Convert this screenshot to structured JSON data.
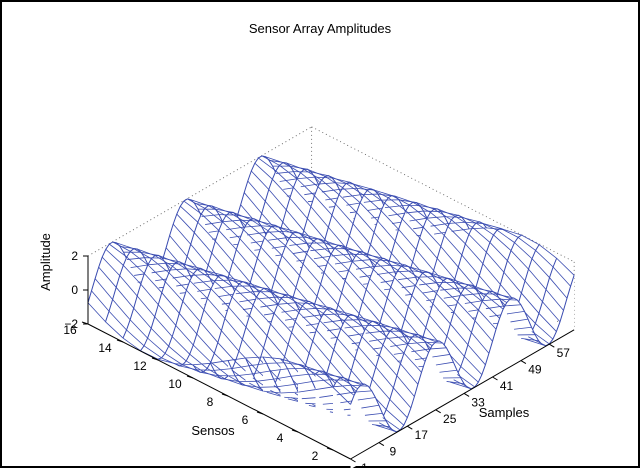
{
  "chart_data": {
    "type": "mesh",
    "title": "Sensor Array Amplitudes",
    "xlabel": "Samples",
    "ylabel": "Sensos",
    "zlabel": "Amplitude",
    "x_ticks": [
      "1",
      "9",
      "17",
      "25",
      "33",
      "41",
      "49",
      "57"
    ],
    "y_ticks": [
      "2",
      "4",
      "6",
      "8",
      "10",
      "12",
      "14",
      "16"
    ],
    "z_ticks": [
      "2",
      "0",
      "−2"
    ],
    "xlim": [
      1,
      64
    ],
    "ylim": [
      1,
      16
    ],
    "zlim": [
      -2,
      2
    ],
    "series": {
      "sensors": 16,
      "samples": 64,
      "formula": "amplitude(sensor, sample) = 2*sin(2*pi*sample/21 + 0.35*sensor)"
    },
    "grid": false,
    "box": true,
    "colors": {
      "mesh": "#3a4cb1",
      "axes": "#000000",
      "frame": "#000000"
    }
  }
}
